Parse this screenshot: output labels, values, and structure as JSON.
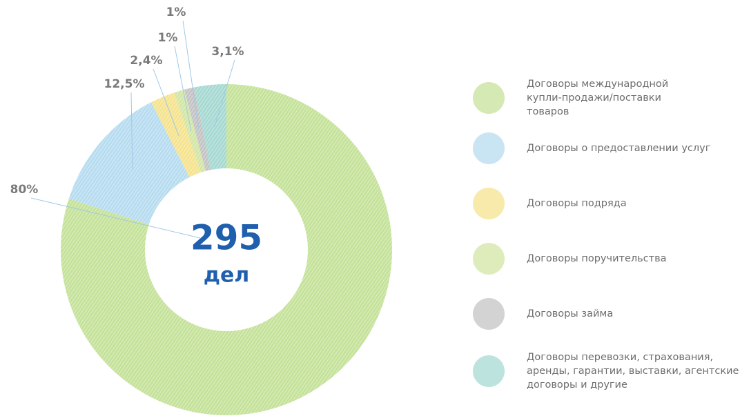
{
  "chart_data": {
    "type": "pie",
    "total": 295,
    "total_unit": "дел",
    "categories": [
      "Договоры международной купли-продажи/поставки товаров",
      "Договоры о предоставлении услуг",
      "Договоры подряда",
      "Договоры поручительства",
      "Договоры займа",
      "Договоры перевозки, страхования, аренды, гарантии, выставки, агентские договоры и другие"
    ],
    "values": [
      80,
      12.5,
      2.4,
      1,
      1,
      3.1
    ],
    "value_labels": [
      "80%",
      "12,5%",
      "2,4%",
      "1%",
      "1%",
      "3,1%"
    ],
    "colors": [
      "#c5e29a",
      "#b7dcf0",
      "#f5e38f",
      "#d3e6a6",
      "#c4c4c4",
      "#a6d9d2"
    ]
  }
}
